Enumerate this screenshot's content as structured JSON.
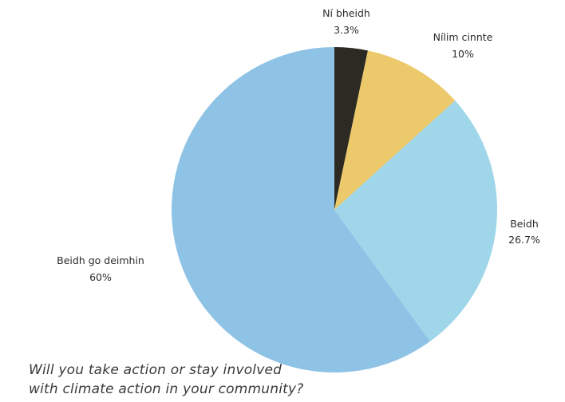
{
  "chart_data": {
    "type": "pie",
    "start_angle_deg": 0,
    "direction": "clockwise",
    "slices": [
      {
        "label": "Ní bheidh",
        "value": 3.3,
        "value_label": "3.3%",
        "color": "#2c2a22"
      },
      {
        "label": "Nílim cinnte",
        "value": 10,
        "value_label": "10%",
        "color": "#ecc96a"
      },
      {
        "label": "Beidh",
        "value": 26.7,
        "value_label": "26.7%",
        "color": "#9fd6ea"
      },
      {
        "label": "Beidh go deimhin",
        "value": 60,
        "value_label": "60%",
        "color": "#8fc3e6"
      }
    ]
  },
  "caption": {
    "line1": "Will you take action or stay involved",
    "line2": "with climate action in your community?"
  }
}
